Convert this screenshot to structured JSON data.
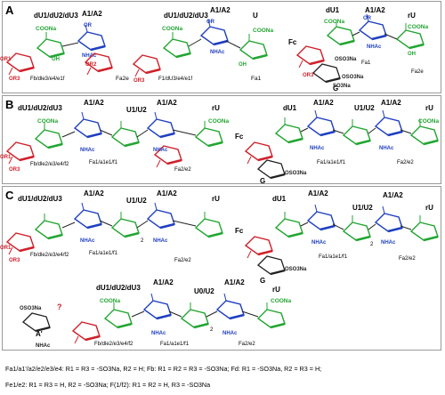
{
  "panels": [
    {
      "label": "A"
    },
    {
      "label": "B"
    },
    {
      "label": "C"
    }
  ],
  "labels": {
    "dU_head3": "dU1/dU2/dU3",
    "dU_head2": "dU1/dU2/dU3",
    "dU1": "dU1",
    "A": "A1/A2",
    "U": "U",
    "UU": "U1/U2",
    "U0U2": "U0/U2",
    "rU": "rU",
    "Fc": "Fc",
    "G": "G",
    "Aprime": "A'",
    "q": "?",
    "coona": "COONa",
    "or": "OR",
    "oh": "OH",
    "nhac": "NHAc",
    "or1": "OR1",
    "or2": "OR2",
    "or3": "OR3",
    "oso3na": "OSO3Na",
    "oso3na2": "OSO3Na",
    "so3na": "SO3Na",
    "two": "2",
    "FA_left": "Fb/dle3/e4/e1f",
    "FA_mid": "F1/dU3/e4/e1f",
    "FA_a1": "Fa1",
    "FA_a2e": "Fa2e",
    "FB_left": "Fb/dle2/e3/e4/f2",
    "FB_mid": "Fa1/a1e1/f1",
    "FB_a2e2": "Fa2/e2",
    "FB_right": "Fa1/a1e1/f1",
    "FC_left": "Fb/dle2/e3/e4/f2",
    "FC_mid": "Fa1/a1e1/f1",
    "FC_a2e2": "Fa2/e2",
    "FC_bot1": "Fb/dle2/e3/e4/f2",
    "FC_bot2": "Fa1/a1e1/f1",
    "FC_bot3": "Fa2/e2"
  },
  "footnotes": [
    "Fa1/a1'/a2/e2/e3/e4: R1 = R3 = -SO3Na, R2 = H; Fb: R1 = R2 = R3 = -SO3Na; Fd: R1 = -SO3Na, R2 = R3 = H;",
    "Fe1/e2: R1 = R3 = H, R2 = -SO3Na; F(1/f2): R1 = R2 = H, R3 = -SO3Na"
  ]
}
